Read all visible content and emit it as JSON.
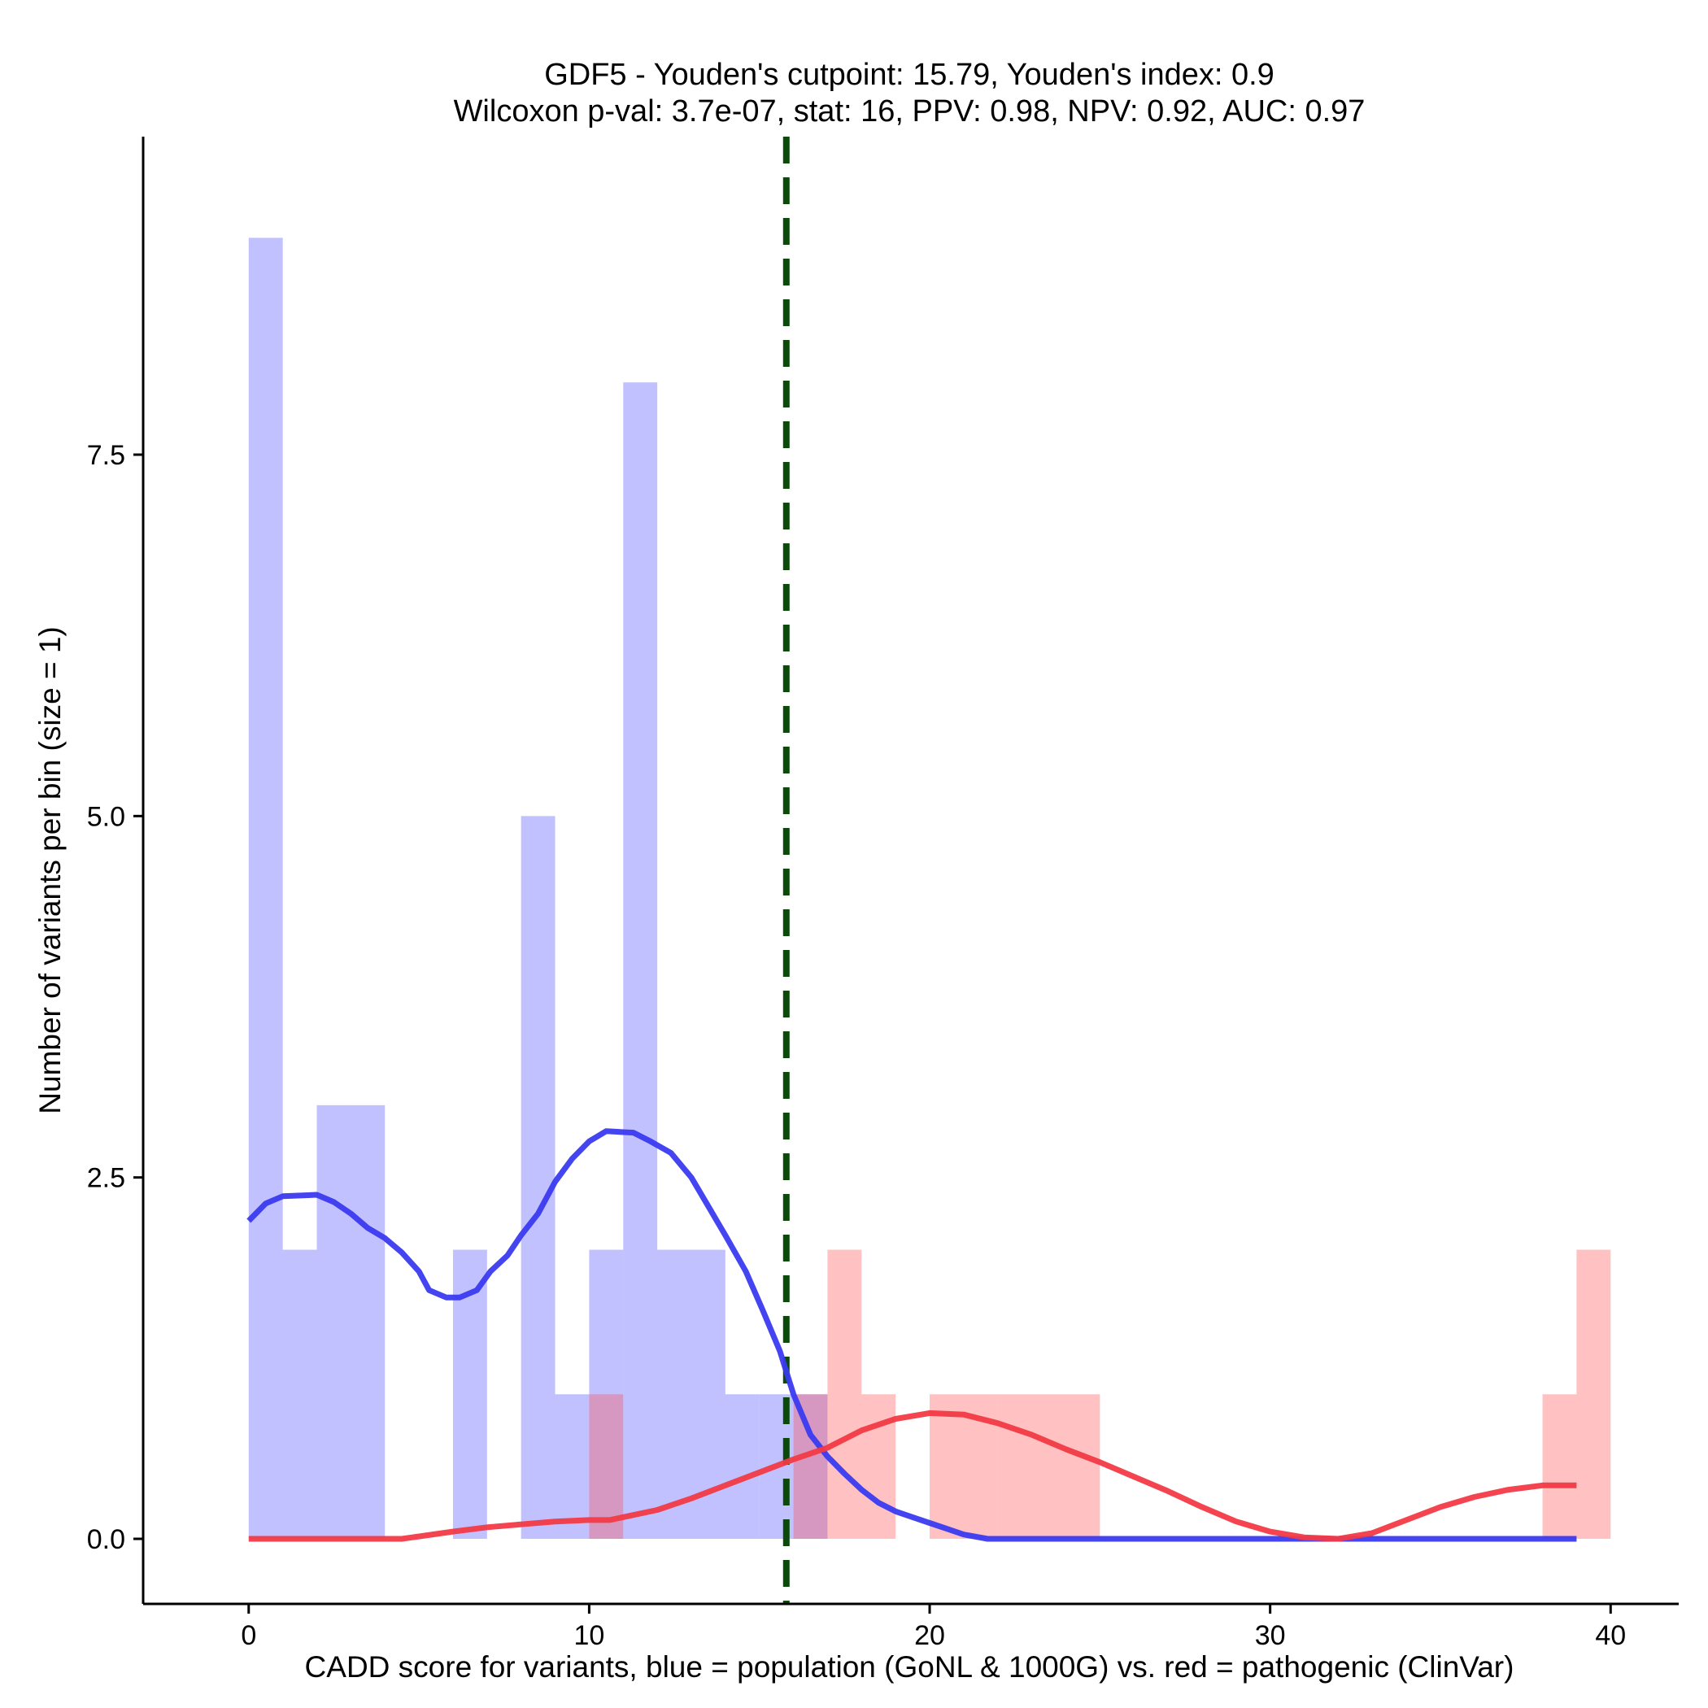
{
  "chart_data": {
    "type": "histogram",
    "title": "GDF5 - Youden's cutpoint: 15.79, Youden's index: 0.9",
    "subtitle": "Wilcoxon p-val: 3.7e-07, stat: 16, PPV: 0.98, NPV: 0.92, AUC: 0.97",
    "xlabel": "CADD score for variants, blue = population (GoNL & 1000G) vs. red = pathogenic (ClinVar)",
    "ylabel": "Number of variants per bin (size = 1)",
    "xlim": [
      -3.1,
      42
    ],
    "ylim": [
      -0.45,
      9.7
    ],
    "x_ticks": [
      0,
      10,
      20,
      30,
      40
    ],
    "x_tick_labels": [
      "0",
      "10",
      "20",
      "30",
      "40"
    ],
    "y_ticks": [
      0,
      2.5,
      5,
      7.5
    ],
    "y_tick_labels": [
      "0.0",
      "2.5",
      "5.0",
      "7.5"
    ],
    "bin_width": 1,
    "cutpoint": 15.79,
    "colors": {
      "population": "#4d4dff",
      "pathogenic": "#ff4d4d",
      "population_line": "#3a3af0",
      "pathogenic_line": "#f23a46",
      "cutpoint_line": "#0b4a0b",
      "axis": "#000000"
    },
    "series": [
      {
        "name": "population",
        "bins": [
          {
            "x0": 0,
            "count": 9
          },
          {
            "x0": 1,
            "count": 2
          },
          {
            "x0": 2,
            "count": 3
          },
          {
            "x0": 3,
            "count": 3
          },
          {
            "x0": 6,
            "count": 2
          },
          {
            "x0": 8,
            "count": 5
          },
          {
            "x0": 9,
            "count": 1
          },
          {
            "x0": 10,
            "count": 2
          },
          {
            "x0": 11,
            "count": 8
          },
          {
            "x0": 12,
            "count": 2
          },
          {
            "x0": 13,
            "count": 2
          },
          {
            "x0": 14,
            "count": 1
          },
          {
            "x0": 15,
            "count": 1
          },
          {
            "x0": 16,
            "count": 1
          }
        ]
      },
      {
        "name": "pathogenic",
        "bins": [
          {
            "x0": 10,
            "count": 1
          },
          {
            "x0": 16,
            "count": 1
          },
          {
            "x0": 17,
            "count": 2
          },
          {
            "x0": 18,
            "count": 1
          },
          {
            "x0": 20,
            "count": 1
          },
          {
            "x0": 21,
            "count": 1
          },
          {
            "x0": 22,
            "count": 1
          },
          {
            "x0": 23,
            "count": 1
          },
          {
            "x0": 24,
            "count": 1
          },
          {
            "x0": 38,
            "count": 1
          },
          {
            "x0": 39,
            "count": 2
          }
        ]
      }
    ],
    "density_lines": [
      {
        "name": "population",
        "points": [
          [
            0,
            2.2
          ],
          [
            0.5,
            2.32
          ],
          [
            1,
            2.37
          ],
          [
            2,
            2.38
          ],
          [
            2.5,
            2.33
          ],
          [
            3,
            2.25
          ],
          [
            3.5,
            2.15
          ],
          [
            4,
            2.08
          ],
          [
            4.5,
            1.98
          ],
          [
            5,
            1.85
          ],
          [
            5.3,
            1.72
          ],
          [
            5.8,
            1.67
          ],
          [
            6.2,
            1.67
          ],
          [
            6.7,
            1.72
          ],
          [
            7.1,
            1.85
          ],
          [
            7.6,
            1.96
          ],
          [
            8,
            2.1
          ],
          [
            8.5,
            2.25
          ],
          [
            9,
            2.47
          ],
          [
            9.5,
            2.63
          ],
          [
            10,
            2.75
          ],
          [
            10.5,
            2.82
          ],
          [
            11.3,
            2.81
          ],
          [
            11.8,
            2.75
          ],
          [
            12.4,
            2.67
          ],
          [
            13,
            2.5
          ],
          [
            13.5,
            2.3
          ],
          [
            14,
            2.1
          ],
          [
            14.6,
            1.85
          ],
          [
            15.1,
            1.58
          ],
          [
            15.6,
            1.3
          ],
          [
            16,
            1.0
          ],
          [
            16.5,
            0.72
          ],
          [
            17,
            0.57
          ],
          [
            17.5,
            0.45
          ],
          [
            18,
            0.34
          ],
          [
            18.5,
            0.25
          ],
          [
            19,
            0.19
          ],
          [
            19.5,
            0.15
          ],
          [
            20,
            0.11
          ],
          [
            20.5,
            0.07
          ],
          [
            21,
            0.03
          ],
          [
            21.7,
            0.0
          ],
          [
            25,
            0.0
          ],
          [
            30,
            0.0
          ],
          [
            35,
            0.0
          ],
          [
            39,
            0.0
          ]
        ]
      },
      {
        "name": "pathogenic",
        "points": [
          [
            0,
            0.0
          ],
          [
            4.5,
            0.0
          ],
          [
            6,
            0.05
          ],
          [
            7,
            0.08
          ],
          [
            8,
            0.1
          ],
          [
            9,
            0.12
          ],
          [
            10,
            0.13
          ],
          [
            10.6,
            0.13
          ],
          [
            12,
            0.2
          ],
          [
            13,
            0.28
          ],
          [
            14,
            0.37
          ],
          [
            15,
            0.46
          ],
          [
            16,
            0.55
          ],
          [
            17,
            0.63
          ],
          [
            18,
            0.75
          ],
          [
            19,
            0.83
          ],
          [
            20,
            0.87
          ],
          [
            21,
            0.86
          ],
          [
            22,
            0.8
          ],
          [
            23,
            0.72
          ],
          [
            24,
            0.62
          ],
          [
            25,
            0.53
          ],
          [
            26,
            0.43
          ],
          [
            27,
            0.33
          ],
          [
            28,
            0.22
          ],
          [
            29,
            0.12
          ],
          [
            30,
            0.05
          ],
          [
            31,
            0.01
          ],
          [
            32,
            0.0
          ],
          [
            33,
            0.04
          ],
          [
            34,
            0.13
          ],
          [
            35,
            0.22
          ],
          [
            36,
            0.29
          ],
          [
            37,
            0.34
          ],
          [
            38,
            0.37
          ],
          [
            39,
            0.37
          ]
        ]
      }
    ]
  }
}
